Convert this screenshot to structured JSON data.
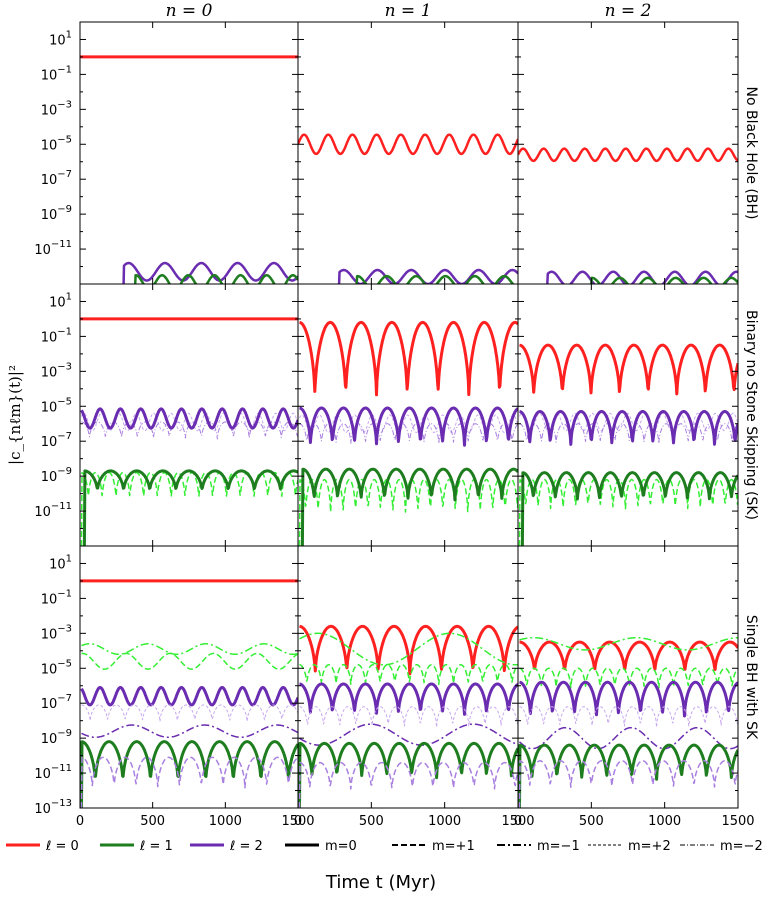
{
  "chart_data": {
    "type": "line",
    "xlabel": "Time t (Myr)",
    "ylabel": "|c_{nℓm}(t)|²",
    "xlim": [
      0,
      1500
    ],
    "ylim_log10": [
      -13,
      2
    ],
    "x_ticks": [
      "0",
      "500",
      "1000",
      "1500"
    ],
    "y_ticks": [
      {
        "base": "10",
        "exp": "1"
      },
      {
        "base": "10",
        "exp": "−1"
      },
      {
        "base": "10",
        "exp": "−3"
      },
      {
        "base": "10",
        "exp": "−5"
      },
      {
        "base": "10",
        "exp": "−7"
      },
      {
        "base": "10",
        "exp": "−9"
      },
      {
        "base": "10",
        "exp": "−11"
      },
      {
        "base": "10",
        "exp": "−13"
      }
    ],
    "columns": [
      "n = 0",
      "n = 1",
      "n = 2"
    ],
    "rows": [
      "No Black Hole (BH)",
      "Binary no Stone Skipping (SK)",
      "Single BH with SK"
    ],
    "legend": [
      {
        "label": "ℓ = 0",
        "color": "#ff2020",
        "style": "solid",
        "width": 3
      },
      {
        "label": "ℓ = 1",
        "color": "#1e7d1e",
        "style": "solid",
        "width": 3
      },
      {
        "label": "ℓ = 2",
        "color": "#6a2cb0",
        "style": "solid",
        "width": 3
      },
      {
        "label": "m=0",
        "color": "#000000",
        "style": "solid",
        "width": 3
      },
      {
        "label": "m=+1",
        "color": "#000000",
        "style": "dash",
        "width": 2
      },
      {
        "label": "m=−1",
        "color": "#000000",
        "style": "dashdot",
        "width": 2
      },
      {
        "label": "m=+2",
        "color": "#000000",
        "style": "dash",
        "width": 1
      },
      {
        "label": "m=−2",
        "color": "#000000",
        "style": "dashdot",
        "width": 1
      }
    ],
    "colors": {
      "l0": "#ff2020",
      "l1": "#1e7d1e",
      "l1_light": "#33ee33",
      "l2": "#6a2cb0",
      "l2_light": "#a97fe0",
      "l2_pale": "#c8a9ef"
    },
    "panels": [
      {
        "row": 0,
        "col": 0,
        "series": [
          {
            "name": "l0m0",
            "color": "l0",
            "style": "solid",
            "width": 3,
            "base": 0.0,
            "amp": 0.0,
            "period": 1500,
            "cusp": false,
            "start": 0
          },
          {
            "name": "l2m0",
            "color": "l2",
            "style": "solid",
            "width": 2.5,
            "base": -12.3,
            "amp": 0.5,
            "period": 250,
            "cusp": false,
            "start": 300
          },
          {
            "name": "l1m0",
            "color": "l1",
            "style": "solid",
            "width": 2.5,
            "base": -12.9,
            "amp": 0.4,
            "period": 180,
            "cusp": false,
            "start": 380
          }
        ]
      },
      {
        "row": 0,
        "col": 1,
        "series": [
          {
            "name": "l0m0",
            "color": "l0",
            "style": "solid",
            "width": 2.5,
            "base": -5.0,
            "amp": 0.55,
            "period": 165,
            "cusp": false,
            "start": 0
          },
          {
            "name": "l2m0",
            "color": "l2",
            "style": "solid",
            "width": 2.5,
            "base": -12.6,
            "amp": 0.4,
            "period": 230,
            "cusp": false,
            "start": 280
          },
          {
            "name": "l1m0",
            "color": "l1",
            "style": "solid",
            "width": 2.5,
            "base": -12.9,
            "amp": 0.35,
            "period": 200,
            "cusp": false,
            "start": 400
          }
        ]
      },
      {
        "row": 0,
        "col": 2,
        "series": [
          {
            "name": "l0m0",
            "color": "l0",
            "style": "solid",
            "width": 2.5,
            "base": -5.6,
            "amp": 0.35,
            "period": 140,
            "cusp": false,
            "start": 0
          },
          {
            "name": "l2m0",
            "color": "l2",
            "style": "solid",
            "width": 2.5,
            "base": -12.7,
            "amp": 0.4,
            "period": 210,
            "cusp": false,
            "start": 200
          },
          {
            "name": "l1m0",
            "color": "l1",
            "style": "solid",
            "width": 2.5,
            "base": -12.95,
            "amp": 0.3,
            "period": 190,
            "cusp": false,
            "start": 500
          }
        ]
      },
      {
        "row": 1,
        "col": 0,
        "series": [
          {
            "name": "l0m0",
            "color": "l0",
            "style": "solid",
            "width": 3,
            "base": 0.0,
            "amp": 0.0,
            "period": 1500,
            "cusp": false,
            "start": 0
          },
          {
            "name": "l2m+2",
            "color": "l2_pale",
            "style": "dash",
            "width": 1,
            "base": -5.9,
            "amp": 0.5,
            "period": 120,
            "cusp": false,
            "start": 10
          },
          {
            "name": "l2m-2",
            "color": "l2_light",
            "style": "dashdot",
            "width": 1,
            "base": -6.4,
            "amp": 0.5,
            "period": 110,
            "cusp": true,
            "start": 10
          },
          {
            "name": "l2m0",
            "color": "l2",
            "style": "solid",
            "width": 3,
            "base": -5.7,
            "amp": 0.55,
            "period": 140,
            "cusp": false,
            "start": 10
          },
          {
            "name": "l1m+1",
            "color": "l1_light",
            "style": "dash",
            "width": 1.5,
            "base": -9.6,
            "amp": 0.8,
            "period": 95,
            "cusp": true,
            "start": 10
          },
          {
            "name": "l1m0",
            "color": "l1",
            "style": "solid",
            "width": 3,
            "base": -9.3,
            "amp": 0.6,
            "period": 180,
            "cusp": true,
            "start": 30
          }
        ]
      },
      {
        "row": 1,
        "col": 1,
        "series": [
          {
            "name": "l0m0",
            "color": "l0",
            "style": "solid",
            "width": 3,
            "base": -2.4,
            "amp": 2.2,
            "period": 210,
            "cusp": true,
            "start": 10
          },
          {
            "name": "l2m+2",
            "color": "l2_pale",
            "style": "dash",
            "width": 1,
            "base": -6.0,
            "amp": 0.5,
            "period": 120,
            "cusp": false,
            "start": 10
          },
          {
            "name": "l2m-2",
            "color": "l2_light",
            "style": "dashdot",
            "width": 1,
            "base": -6.6,
            "amp": 0.6,
            "period": 100,
            "cusp": true,
            "start": 10
          },
          {
            "name": "l2m0",
            "color": "l2",
            "style": "solid",
            "width": 3,
            "base": -6.2,
            "amp": 1.1,
            "period": 150,
            "cusp": true,
            "start": 10
          },
          {
            "name": "l1m+1",
            "color": "l1_light",
            "style": "dash",
            "width": 1.5,
            "base": -10.2,
            "amp": 1.0,
            "period": 85,
            "cusp": true,
            "start": 10
          },
          {
            "name": "l1m0",
            "color": "l1",
            "style": "solid",
            "width": 3,
            "base": -9.5,
            "amp": 0.9,
            "period": 160,
            "cusp": true,
            "start": 30
          }
        ]
      },
      {
        "row": 1,
        "col": 2,
        "series": [
          {
            "name": "l0m0",
            "color": "l0",
            "style": "solid",
            "width": 3,
            "base": -3.0,
            "amp": 1.5,
            "period": 195,
            "cusp": true,
            "start": 10
          },
          {
            "name": "l2m+2",
            "color": "l2_pale",
            "style": "dash",
            "width": 1,
            "base": -5.9,
            "amp": 0.5,
            "period": 120,
            "cusp": false,
            "start": 10
          },
          {
            "name": "l2m-2",
            "color": "l2_light",
            "style": "dashdot",
            "width": 1,
            "base": -6.6,
            "amp": 0.6,
            "period": 100,
            "cusp": true,
            "start": 10
          },
          {
            "name": "l2m0",
            "color": "l2",
            "style": "solid",
            "width": 3,
            "base": -6.3,
            "amp": 1.0,
            "period": 140,
            "cusp": true,
            "start": 10
          },
          {
            "name": "l1m+1",
            "color": "l1_light",
            "style": "dash",
            "width": 1.5,
            "base": -10.1,
            "amp": 0.9,
            "period": 85,
            "cusp": true,
            "start": 10
          },
          {
            "name": "l1m0",
            "color": "l1",
            "style": "solid",
            "width": 3,
            "base": -9.6,
            "amp": 0.8,
            "period": 150,
            "cusp": true,
            "start": 30
          }
        ]
      },
      {
        "row": 2,
        "col": 0,
        "series": [
          {
            "name": "l0m0",
            "color": "l0",
            "style": "solid",
            "width": 3,
            "base": 0.0,
            "amp": 0.0,
            "period": 1500,
            "cusp": false,
            "start": 0
          },
          {
            "name": "l1m-1",
            "color": "l1_light",
            "style": "dashdot",
            "width": 1.5,
            "base": -3.9,
            "amp": 0.3,
            "period": 400,
            "cusp": false,
            "start": 10
          },
          {
            "name": "l1m+1",
            "color": "l1_light",
            "style": "dash",
            "width": 1.5,
            "base": -4.6,
            "amp": 0.45,
            "period": 300,
            "cusp": false,
            "start": 10
          },
          {
            "name": "l2m0",
            "color": "l2",
            "style": "solid",
            "width": 3,
            "base": -6.6,
            "amp": 0.5,
            "period": 140,
            "cusp": false,
            "start": 10
          },
          {
            "name": "l2m+2",
            "color": "l2_pale",
            "style": "dash",
            "width": 1,
            "base": -7.6,
            "amp": 0.5,
            "period": 120,
            "cusp": true,
            "start": 10
          },
          {
            "name": "l2m-1",
            "color": "l2",
            "style": "dashdot",
            "width": 1.5,
            "base": -8.6,
            "amp": 0.35,
            "period": 500,
            "cusp": false,
            "start": 10
          },
          {
            "name": "l1m0",
            "color": "l1",
            "style": "solid",
            "width": 3,
            "base": -10.4,
            "amp": 1.2,
            "period": 190,
            "cusp": true,
            "start": 10
          },
          {
            "name": "l2m+1",
            "color": "l2_light",
            "style": "dash",
            "width": 1.5,
            "base": -11.0,
            "amp": 0.9,
            "period": 150,
            "cusp": true,
            "start": 10
          }
        ]
      },
      {
        "row": 2,
        "col": 1,
        "series": [
          {
            "name": "l0m0",
            "color": "l0",
            "style": "solid",
            "width": 3,
            "base": -4.0,
            "amp": 1.4,
            "period": 215,
            "cusp": true,
            "start": 10
          },
          {
            "name": "l1m-1",
            "color": "l1_light",
            "style": "dashdot",
            "width": 1.5,
            "base": -3.9,
            "amp": 0.9,
            "period": 900,
            "cusp": false,
            "start": 10
          },
          {
            "name": "l1m+1",
            "color": "l1_light",
            "style": "dash",
            "width": 1.5,
            "base": -5.4,
            "amp": 0.6,
            "period": 100,
            "cusp": true,
            "start": 10
          },
          {
            "name": "l2m0",
            "color": "l2",
            "style": "solid",
            "width": 3,
            "base": -6.8,
            "amp": 0.9,
            "period": 150,
            "cusp": true,
            "start": 10
          },
          {
            "name": "l2m+2",
            "color": "l2_pale",
            "style": "dash",
            "width": 1,
            "base": -7.8,
            "amp": 0.6,
            "period": 110,
            "cusp": true,
            "start": 10
          },
          {
            "name": "l2m-1",
            "color": "l2",
            "style": "dashdot",
            "width": 1.5,
            "base": -8.8,
            "amp": 0.6,
            "period": 700,
            "cusp": false,
            "start": 10
          },
          {
            "name": "l1m0",
            "color": "l1",
            "style": "solid",
            "width": 3,
            "base": -10.3,
            "amp": 1.0,
            "period": 170,
            "cusp": true,
            "start": 10
          },
          {
            "name": "l2m+1",
            "color": "l2_light",
            "style": "dash",
            "width": 1.5,
            "base": -11.2,
            "amp": 0.8,
            "period": 140,
            "cusp": true,
            "start": 10
          }
        ]
      },
      {
        "row": 2,
        "col": 2,
        "series": [
          {
            "name": "l0m0",
            "color": "l0",
            "style": "solid",
            "width": 3,
            "base": -4.4,
            "amp": 0.9,
            "period": 205,
            "cusp": true,
            "start": 10
          },
          {
            "name": "l1m-1",
            "color": "l1_light",
            "style": "dashdot",
            "width": 1.5,
            "base": -3.6,
            "amp": 0.35,
            "period": 700,
            "cusp": false,
            "start": 10
          },
          {
            "name": "l1m+1",
            "color": "l1_light",
            "style": "dash",
            "width": 1.5,
            "base": -5.6,
            "amp": 0.6,
            "period": 100,
            "cusp": true,
            "start": 10
          },
          {
            "name": "l2m0",
            "color": "l2",
            "style": "solid",
            "width": 3,
            "base": -6.8,
            "amp": 1.0,
            "period": 150,
            "cusp": true,
            "start": 10
          },
          {
            "name": "l2m+2",
            "color": "l2_pale",
            "style": "dash",
            "width": 1,
            "base": -7.8,
            "amp": 0.6,
            "period": 110,
            "cusp": true,
            "start": 10
          },
          {
            "name": "l2m-1",
            "color": "l2",
            "style": "dashdot",
            "width": 1.5,
            "base": -9.0,
            "amp": 0.6,
            "period": 450,
            "cusp": false,
            "start": 10
          },
          {
            "name": "l1m0",
            "color": "l1",
            "style": "solid",
            "width": 3,
            "base": -10.4,
            "amp": 1.0,
            "period": 170,
            "cusp": true,
            "start": 10
          },
          {
            "name": "l2m+1",
            "color": "l2_light",
            "style": "dash",
            "width": 1.5,
            "base": -11.1,
            "amp": 0.8,
            "period": 140,
            "cusp": true,
            "start": 10
          }
        ]
      }
    ]
  }
}
